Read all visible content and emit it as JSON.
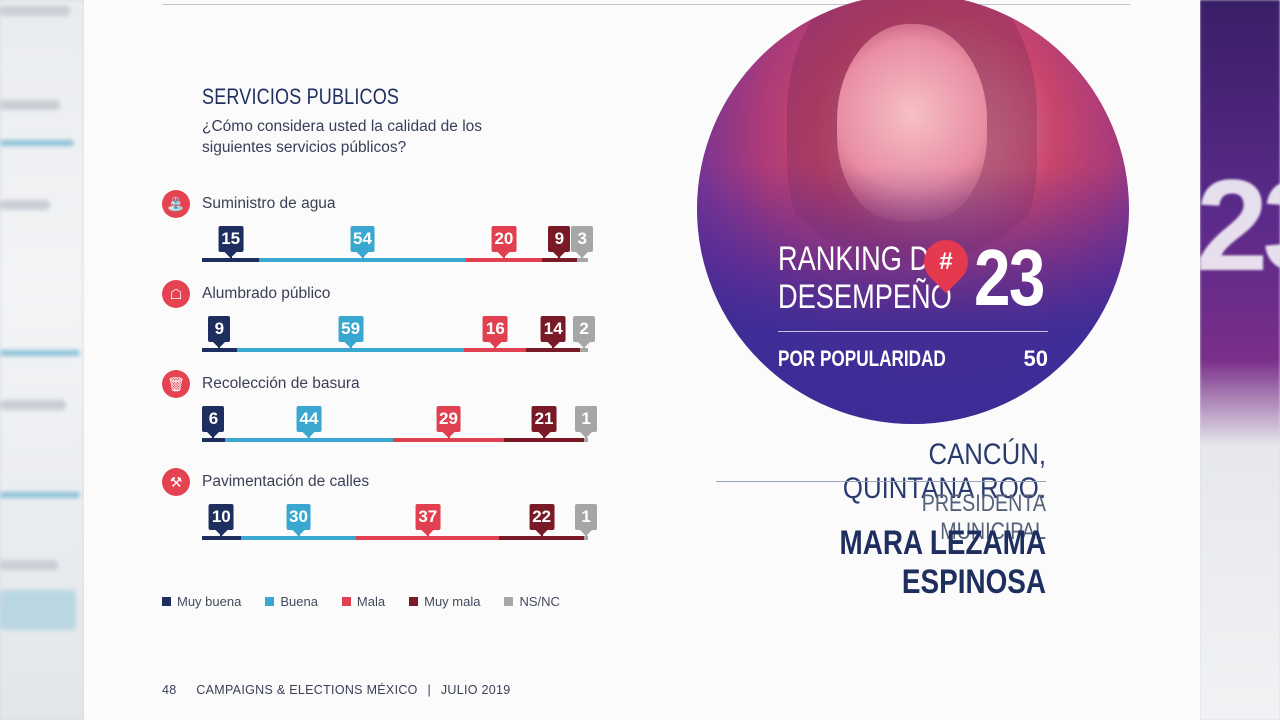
{
  "section": {
    "title": "SERVICIOS PUBLICOS",
    "question": "¿Cómo considera usted la calidad de los siguientes servicios públicos?"
  },
  "colors": {
    "muy_buena": "#1e2e5e",
    "buena": "#3aa7d0",
    "mala": "#e0404f",
    "muy_mala": "#7a1a26",
    "ns_nc": "#a6a6a6",
    "icon_bg": "#e54352"
  },
  "legend": [
    {
      "label": "Muy buena",
      "color": "#1e2e5e"
    },
    {
      "label": "Buena",
      "color": "#3aa7d0"
    },
    {
      "label": "Mala",
      "color": "#e0404f"
    },
    {
      "label": "Muy mala",
      "color": "#7a1a26"
    },
    {
      "label": "NS/NC",
      "color": "#a6a6a6"
    }
  ],
  "chart_data": {
    "type": "bar",
    "title": "SERVICIOS PUBLICOS",
    "categories": [
      "Suministro de agua",
      "Alumbrado público",
      "Recolección de basura",
      "Pavimentación de calles"
    ],
    "icons": [
      "water-faucet-icon",
      "street-light-icon",
      "trash-bin-icon",
      "road-worker-icon"
    ],
    "series": [
      {
        "name": "Muy buena",
        "values": [
          15,
          9,
          6,
          10
        ]
      },
      {
        "name": "Buena",
        "values": [
          54,
          59,
          44,
          30
        ]
      },
      {
        "name": "Mala",
        "values": [
          20,
          16,
          29,
          37
        ]
      },
      {
        "name": "Muy mala",
        "values": [
          9,
          14,
          21,
          22
        ]
      },
      {
        "name": "NS/NC",
        "values": [
          3,
          2,
          1,
          1
        ]
      }
    ],
    "stacked": true
  },
  "ranking": {
    "label_line1": "RANKING DE",
    "label_line2": "DESEMPEÑO",
    "hash": "#",
    "number": "23",
    "popularity_label": "POR POPULARIDAD",
    "popularity_value": "50"
  },
  "profile": {
    "city": "CANCÚN, QUINTANA ROO.",
    "role": "PRESIDENTA MUNICIPAL",
    "name": "MARA LEZAMA ESPINOSA"
  },
  "footer": {
    "page": "48",
    "publication": "CAMPAIGNS & ELECTIONS MÉXICO",
    "separator": "|",
    "date": "JULIO 2019"
  }
}
